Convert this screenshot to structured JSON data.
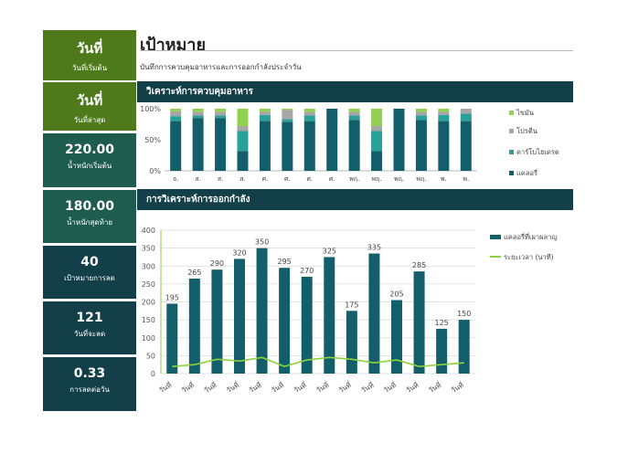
{
  "sidebar": [
    {
      "value": "วันที่",
      "label": "วันที่เริ่มต้น"
    },
    {
      "value": "วันที่",
      "label": "วันที่ล่าสุด"
    },
    {
      "value": "220.00",
      "label": "น้ำหนักเริ่มต้น"
    },
    {
      "value": "180.00",
      "label": "น้ำหนักสุดท้าย"
    },
    {
      "value": "40",
      "label": "เป้าหมายการลด"
    },
    {
      "value": "121",
      "label": "วันที่จะลด"
    },
    {
      "value": "0.33",
      "label": "การลดต่อวัน"
    }
  ],
  "header": {
    "title": "เป้าหมาย",
    "subtitle": "บันทึกการควบคุมอาหารและการออกกำลังประจำวัน"
  },
  "sections": {
    "diet": "วิเคราะห์การควบคุมอาหาร",
    "exercise": "การวิเคราะห์การออกกำลัง"
  },
  "colors": {
    "fat": "#92d050",
    "protein": "#a6a6a6",
    "carb": "#2aa198",
    "calorie": "#135e6b",
    "duration": "#8cd23c"
  },
  "chart_data": [
    {
      "type": "bar",
      "stacked": "percent",
      "categories": [
        "จ.",
        "ส.",
        "ส.",
        "ส.",
        "ศ.",
        "ศ.",
        "ศ.",
        "ศ.",
        "พฤ.",
        "พฤ.",
        "พฤ.",
        "พฤ.",
        "พ.",
        "พ."
      ],
      "series": [
        {
          "name": "ไขมัน",
          "values": [
            4,
            5,
            5,
            28,
            5,
            2,
            5,
            0,
            5,
            28,
            0,
            5,
            5,
            0
          ]
        },
        {
          "name": "โปรตีน",
          "values": [
            8,
            6,
            6,
            8,
            5,
            15,
            6,
            0,
            6,
            8,
            0,
            6,
            5,
            8
          ]
        },
        {
          "name": "คาร์โบไฮเดรต",
          "values": [
            8,
            4,
            4,
            32,
            10,
            4,
            9,
            0,
            7,
            32,
            0,
            7,
            10,
            12
          ]
        },
        {
          "name": "แคลอรี่",
          "values": [
            80,
            85,
            85,
            32,
            80,
            79,
            80,
            100,
            82,
            32,
            100,
            82,
            80,
            80
          ]
        }
      ],
      "yticks": [
        "0%",
        "50%",
        "100%"
      ],
      "ylim": [
        0,
        100
      ],
      "legend": "right"
    },
    {
      "type": "bar",
      "categories": [
        "วันที่",
        "วันที่",
        "วันที่",
        "วันที่",
        "วันที่",
        "วันที่",
        "วันที่",
        "วันที่",
        "วันที่",
        "วันที่",
        "วันที่",
        "วันที่",
        "วันที่",
        "วันที่"
      ],
      "series": [
        {
          "name": "แคลอรี่ที่เผาผลาญ",
          "type": "bar",
          "values": [
            195,
            265,
            290,
            320,
            350,
            295,
            270,
            325,
            175,
            335,
            205,
            285,
            125,
            150
          ]
        },
        {
          "name": "ระยะเวลา (นาที)",
          "type": "line",
          "values": [
            20,
            25,
            40,
            35,
            45,
            20,
            38,
            45,
            40,
            30,
            38,
            20,
            25,
            30
          ]
        }
      ],
      "yticks": [
        0,
        50,
        100,
        150,
        200,
        250,
        300,
        350,
        400
      ],
      "ylim": [
        0,
        400
      ],
      "grid": true,
      "legend": "right"
    }
  ]
}
